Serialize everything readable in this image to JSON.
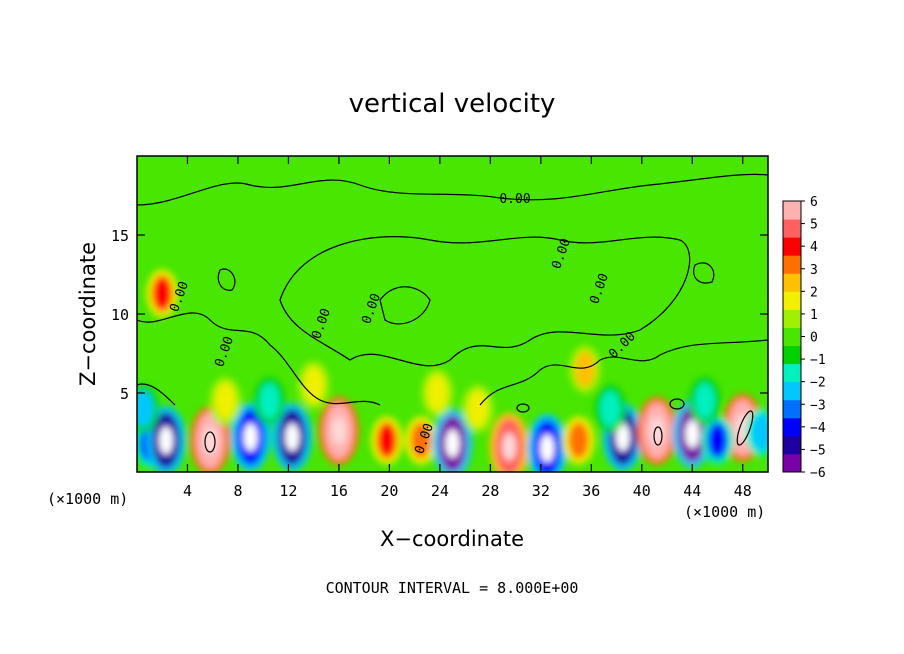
{
  "chart_data": {
    "type": "heatmap",
    "title": "vertical velocity",
    "xlabel": "X−coordinate",
    "ylabel": "Z−coordinate",
    "x_unit_left": "(×1000 m)",
    "x_unit_right": "(×1000 m)",
    "xlim": [
      0,
      50
    ],
    "ylim": [
      0,
      20
    ],
    "x_ticks": [
      4,
      8,
      12,
      16,
      20,
      24,
      28,
      32,
      36,
      40,
      44,
      48
    ],
    "y_ticks": [
      5,
      10,
      15
    ],
    "colorbar": {
      "range": [
        -6,
        6
      ],
      "labels": [
        "6",
        "5",
        "4",
        "3",
        "2",
        "1",
        "0",
        "−1",
        "−2",
        "−3",
        "−4",
        "−5",
        "−6"
      ],
      "colors": [
        "#7a00a8",
        "#1e00a0",
        "#0000ff",
        "#0070ff",
        "#00c8ff",
        "#00f0c0",
        "#00d200",
        "#48e600",
        "#a0f000",
        "#f0f000",
        "#ffc000",
        "#ff7000",
        "#ff0000",
        "#ff6060",
        "#ffb0b0"
      ]
    },
    "contour_labels": [
      "0.00",
      "0.00",
      "0.00",
      "0.00",
      "0.00",
      "0.00",
      "0.00",
      "0.00",
      "0.00"
    ],
    "footer": "CONTOUR INTERVAL = 8.000E+00",
    "cells": [
      {
        "x": 1.0,
        "z": 1.8,
        "w": -4.0
      },
      {
        "x": 2.3,
        "z": 2.0,
        "w": -5.5
      },
      {
        "x": 5.8,
        "z": 2.0,
        "w": 6.0
      },
      {
        "x": 9.0,
        "z": 2.2,
        "w": -4.5
      },
      {
        "x": 12.3,
        "z": 2.2,
        "w": -5.0
      },
      {
        "x": 16.0,
        "z": 2.6,
        "w": 6.0
      },
      {
        "x": 19.8,
        "z": 2.0,
        "w": 4.0
      },
      {
        "x": 22.5,
        "z": 2.0,
        "w": 3.0
      },
      {
        "x": 25.0,
        "z": 1.8,
        "w": -6.0
      },
      {
        "x": 29.5,
        "z": 1.6,
        "w": 5.0
      },
      {
        "x": 32.5,
        "z": 1.5,
        "w": -4.5
      },
      {
        "x": 35.0,
        "z": 2.0,
        "w": 3.0
      },
      {
        "x": 38.5,
        "z": 2.2,
        "w": -5.0
      },
      {
        "x": 41.2,
        "z": 2.6,
        "w": 6.0
      },
      {
        "x": 44.0,
        "z": 2.4,
        "w": -6.0
      },
      {
        "x": 48.0,
        "z": 2.8,
        "w": 6.0
      },
      {
        "x": 46.0,
        "z": 2.0,
        "w": -4.0
      },
      {
        "x": 2.0,
        "z": 11.3,
        "w": 4.0
      },
      {
        "x": 35.5,
        "z": 6.5,
        "w": 2.5
      },
      {
        "x": 23.8,
        "z": 5.0,
        "w": 2.0
      },
      {
        "x": 14.0,
        "z": 5.5,
        "w": 1.5
      },
      {
        "x": 7.0,
        "z": 4.5,
        "w": 1.5
      },
      {
        "x": 27.0,
        "z": 4.0,
        "w": 1.5
      },
      {
        "x": 45.0,
        "z": 4.5,
        "w": -2.0
      },
      {
        "x": 0.5,
        "z": 4.0,
        "w": -2.5
      },
      {
        "x": 10.5,
        "z": 4.5,
        "w": -1.5
      },
      {
        "x": 37.5,
        "z": 4.0,
        "w": -2.0
      },
      {
        "x": 49.5,
        "z": 2.5,
        "w": -3.0
      }
    ]
  }
}
